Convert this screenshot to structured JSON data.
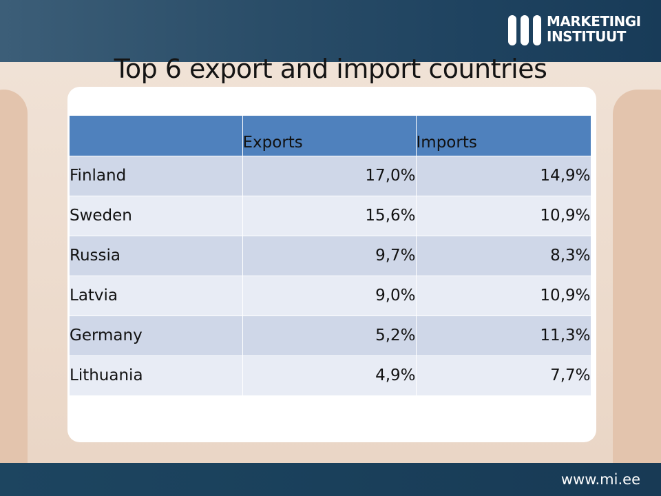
{
  "title": "Top 6 export and import countries",
  "logo": {
    "line1": "MARKETINGI",
    "line2": "INSTITUUT"
  },
  "footer": {
    "url": "www.mi.ee"
  },
  "colors": {
    "header_blue": "#4f81bd",
    "row_dark": "#cfd7e8",
    "row_light": "#e8ecf5",
    "band": "#1f4360"
  },
  "table": {
    "headers": [
      "",
      "Exports",
      "Imports"
    ],
    "rows": [
      {
        "country": "Finland",
        "exports": "17,0%",
        "imports": "14,9%"
      },
      {
        "country": "Sweden",
        "exports": "15,6%",
        "imports": "10,9%"
      },
      {
        "country": "Russia",
        "exports": "9,7%",
        "imports": "8,3%"
      },
      {
        "country": "Latvia",
        "exports": "9,0%",
        "imports": "10,9%"
      },
      {
        "country": "Germany",
        "exports": "5,2%",
        "imports": "11,3%"
      },
      {
        "country": "Lithuania",
        "exports": "4,9%",
        "imports": "7,7%"
      }
    ]
  }
}
